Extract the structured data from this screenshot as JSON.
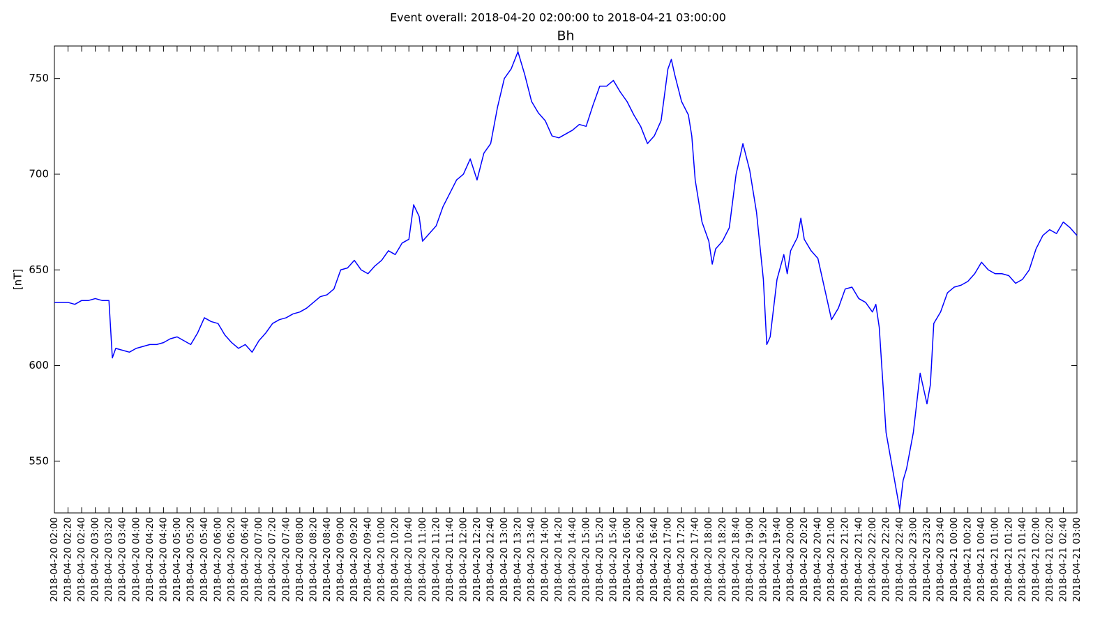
{
  "chart_data": {
    "type": "line",
    "suptitle": "Event overall: 2018-04-20 02:00:00 to 2018-04-21 03:00:00",
    "title": "Bh",
    "y_label": "[nT]",
    "xlim": [
      "2018-04-20 02:00",
      "2018-04-21 03:00"
    ],
    "ylim": [
      523,
      767
    ],
    "yticks": [
      550,
      600,
      650,
      700,
      750
    ],
    "xticks": [
      "2018-04-20 02:00",
      "2018-04-20 02:20",
      "2018-04-20 02:40",
      "2018-04-20 03:00",
      "2018-04-20 03:20",
      "2018-04-20 03:40",
      "2018-04-20 04:00",
      "2018-04-20 04:20",
      "2018-04-20 04:40",
      "2018-04-20 05:00",
      "2018-04-20 05:20",
      "2018-04-20 05:40",
      "2018-04-20 06:00",
      "2018-04-20 06:20",
      "2018-04-20 06:40",
      "2018-04-20 07:00",
      "2018-04-20 07:20",
      "2018-04-20 07:40",
      "2018-04-20 08:00",
      "2018-04-20 08:20",
      "2018-04-20 08:40",
      "2018-04-20 09:00",
      "2018-04-20 09:20",
      "2018-04-20 09:40",
      "2018-04-20 10:00",
      "2018-04-20 10:20",
      "2018-04-20 10:40",
      "2018-04-20 11:00",
      "2018-04-20 11:20",
      "2018-04-20 11:40",
      "2018-04-20 12:00",
      "2018-04-20 12:20",
      "2018-04-20 12:40",
      "2018-04-20 13:00",
      "2018-04-20 13:20",
      "2018-04-20 13:40",
      "2018-04-20 14:00",
      "2018-04-20 14:20",
      "2018-04-20 14:40",
      "2018-04-20 15:00",
      "2018-04-20 15:20",
      "2018-04-20 15:40",
      "2018-04-20 16:00",
      "2018-04-20 16:20",
      "2018-04-20 16:40",
      "2018-04-20 17:00",
      "2018-04-20 17:20",
      "2018-04-20 17:40",
      "2018-04-20 18:00",
      "2018-04-20 18:20",
      "2018-04-20 18:40",
      "2018-04-20 19:00",
      "2018-04-20 19:20",
      "2018-04-20 19:40",
      "2018-04-20 20:00",
      "2018-04-20 20:20",
      "2018-04-20 20:40",
      "2018-04-20 21:00",
      "2018-04-20 21:20",
      "2018-04-20 21:40",
      "2018-04-20 22:00",
      "2018-04-20 22:20",
      "2018-04-20 22:40",
      "2018-04-20 23:00",
      "2018-04-20 23:20",
      "2018-04-20 23:40",
      "2018-04-21 00:00",
      "2018-04-21 00:20",
      "2018-04-21 00:40",
      "2018-04-21 01:00",
      "2018-04-21 01:20",
      "2018-04-21 01:40",
      "2018-04-21 02:00",
      "2018-04-21 02:20",
      "2018-04-21 02:40",
      "2018-04-21 03:00"
    ],
    "series": [
      {
        "name": "Bh",
        "color": "#0000ff",
        "x": [
          "2018-04-20 02:00",
          "2018-04-20 02:10",
          "2018-04-20 02:20",
          "2018-04-20 02:30",
          "2018-04-20 02:40",
          "2018-04-20 02:50",
          "2018-04-20 03:00",
          "2018-04-20 03:10",
          "2018-04-20 03:20",
          "2018-04-20 03:25",
          "2018-04-20 03:30",
          "2018-04-20 03:40",
          "2018-04-20 03:50",
          "2018-04-20 04:00",
          "2018-04-20 04:10",
          "2018-04-20 04:20",
          "2018-04-20 04:30",
          "2018-04-20 04:40",
          "2018-04-20 04:50",
          "2018-04-20 05:00",
          "2018-04-20 05:10",
          "2018-04-20 05:20",
          "2018-04-20 05:30",
          "2018-04-20 05:40",
          "2018-04-20 05:50",
          "2018-04-20 06:00",
          "2018-04-20 06:10",
          "2018-04-20 06:20",
          "2018-04-20 06:30",
          "2018-04-20 06:40",
          "2018-04-20 06:50",
          "2018-04-20 07:00",
          "2018-04-20 07:10",
          "2018-04-20 07:20",
          "2018-04-20 07:30",
          "2018-04-20 07:40",
          "2018-04-20 07:50",
          "2018-04-20 08:00",
          "2018-04-20 08:10",
          "2018-04-20 08:20",
          "2018-04-20 08:30",
          "2018-04-20 08:40",
          "2018-04-20 08:50",
          "2018-04-20 09:00",
          "2018-04-20 09:10",
          "2018-04-20 09:20",
          "2018-04-20 09:30",
          "2018-04-20 09:40",
          "2018-04-20 09:50",
          "2018-04-20 10:00",
          "2018-04-20 10:10",
          "2018-04-20 10:20",
          "2018-04-20 10:30",
          "2018-04-20 10:40",
          "2018-04-20 10:47",
          "2018-04-20 10:55",
          "2018-04-20 11:00",
          "2018-04-20 11:10",
          "2018-04-20 11:20",
          "2018-04-20 11:30",
          "2018-04-20 11:40",
          "2018-04-20 11:50",
          "2018-04-20 12:00",
          "2018-04-20 12:10",
          "2018-04-20 12:20",
          "2018-04-20 12:30",
          "2018-04-20 12:40",
          "2018-04-20 12:50",
          "2018-04-20 13:00",
          "2018-04-20 13:10",
          "2018-04-20 13:20",
          "2018-04-20 13:30",
          "2018-04-20 13:40",
          "2018-04-20 13:50",
          "2018-04-20 14:00",
          "2018-04-20 14:10",
          "2018-04-20 14:20",
          "2018-04-20 14:30",
          "2018-04-20 14:40",
          "2018-04-20 14:50",
          "2018-04-20 15:00",
          "2018-04-20 15:10",
          "2018-04-20 15:20",
          "2018-04-20 15:30",
          "2018-04-20 15:40",
          "2018-04-20 15:50",
          "2018-04-20 16:00",
          "2018-04-20 16:10",
          "2018-04-20 16:20",
          "2018-04-20 16:30",
          "2018-04-20 16:40",
          "2018-04-20 16:50",
          "2018-04-20 17:00",
          "2018-04-20 17:05",
          "2018-04-20 17:10",
          "2018-04-20 17:20",
          "2018-04-20 17:30",
          "2018-04-20 17:35",
          "2018-04-20 17:40",
          "2018-04-20 17:50",
          "2018-04-20 18:00",
          "2018-04-20 18:05",
          "2018-04-20 18:10",
          "2018-04-20 18:20",
          "2018-04-20 18:30",
          "2018-04-20 18:40",
          "2018-04-20 18:50",
          "2018-04-20 19:00",
          "2018-04-20 19:10",
          "2018-04-20 19:20",
          "2018-04-20 19:25",
          "2018-04-20 19:30",
          "2018-04-20 19:40",
          "2018-04-20 19:50",
          "2018-04-20 19:55",
          "2018-04-20 20:00",
          "2018-04-20 20:10",
          "2018-04-20 20:15",
          "2018-04-20 20:20",
          "2018-04-20 20:30",
          "2018-04-20 20:40",
          "2018-04-20 20:50",
          "2018-04-20 21:00",
          "2018-04-20 21:10",
          "2018-04-20 21:20",
          "2018-04-20 21:30",
          "2018-04-20 21:40",
          "2018-04-20 21:50",
          "2018-04-20 22:00",
          "2018-04-20 22:05",
          "2018-04-20 22:10",
          "2018-04-20 22:20",
          "2018-04-20 22:30",
          "2018-04-20 22:40",
          "2018-04-20 22:45",
          "2018-04-20 22:50",
          "2018-04-20 23:00",
          "2018-04-20 23:10",
          "2018-04-20 23:20",
          "2018-04-20 23:25",
          "2018-04-20 23:30",
          "2018-04-20 23:40",
          "2018-04-20 23:50",
          "2018-04-21 00:00",
          "2018-04-21 00:10",
          "2018-04-21 00:20",
          "2018-04-21 00:30",
          "2018-04-21 00:40",
          "2018-04-21 00:50",
          "2018-04-21 01:00",
          "2018-04-21 01:10",
          "2018-04-21 01:20",
          "2018-04-21 01:30",
          "2018-04-21 01:40",
          "2018-04-21 01:50",
          "2018-04-21 02:00",
          "2018-04-21 02:10",
          "2018-04-21 02:20",
          "2018-04-21 02:30",
          "2018-04-21 02:40",
          "2018-04-21 02:50",
          "2018-04-21 03:00"
        ],
        "values": [
          633,
          633,
          633,
          632,
          634,
          634,
          635,
          634,
          634,
          604,
          609,
          608,
          607,
          609,
          610,
          611,
          611,
          612,
          614,
          615,
          613,
          611,
          617,
          625,
          623,
          622,
          616,
          612,
          609,
          611,
          607,
          613,
          617,
          622,
          624,
          625,
          627,
          628,
          630,
          633,
          636,
          637,
          640,
          650,
          651,
          655,
          650,
          648,
          652,
          655,
          660,
          658,
          664,
          666,
          684,
          678,
          665,
          669,
          673,
          683,
          690,
          697,
          700,
          708,
          697,
          711,
          716,
          735,
          750,
          755,
          764,
          752,
          738,
          732,
          728,
          720,
          719,
          721,
          723,
          726,
          725,
          736,
          746,
          746,
          749,
          743,
          738,
          731,
          725,
          716,
          720,
          728,
          755,
          760,
          752,
          738,
          731,
          720,
          697,
          675,
          665,
          653,
          661,
          665,
          672,
          700,
          716,
          702,
          680,
          645,
          611,
          615,
          645,
          658,
          648,
          660,
          667,
          677,
          666,
          660,
          656,
          640,
          624,
          630,
          640,
          641,
          635,
          633,
          628,
          632,
          620,
          565,
          545,
          525,
          540,
          546,
          565,
          596,
          580,
          590,
          622,
          628,
          638,
          641,
          642,
          644,
          648,
          654,
          650,
          648,
          648,
          647,
          643,
          645,
          650,
          661,
          668,
          671,
          669,
          675,
          672,
          668
        ]
      }
    ]
  }
}
